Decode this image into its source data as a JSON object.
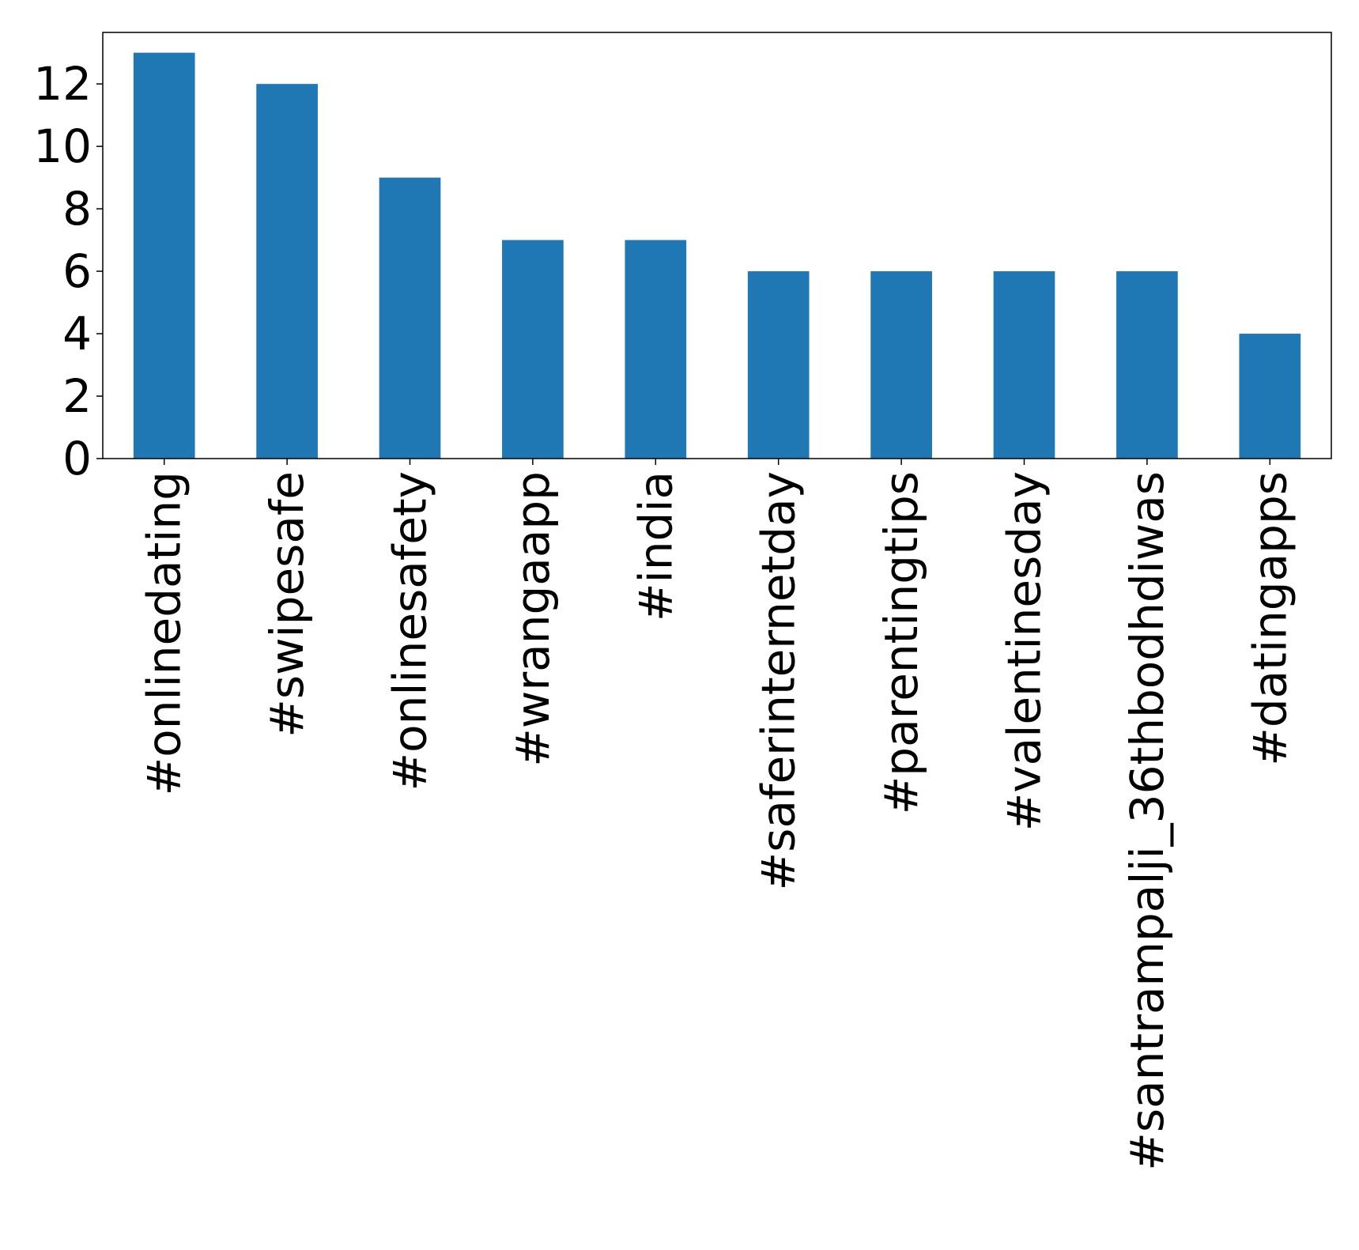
{
  "chart_data": {
    "type": "bar",
    "categories": [
      "#onlinedating",
      "#swipesafe",
      "#onlinesafety",
      "#wrangaapp",
      "#india",
      "#saferinternetday",
      "#parentingtips",
      "#valentinesday",
      "#santrampalji_36thbodhdiwas",
      "#datingapps"
    ],
    "values": [
      13,
      12,
      9,
      7,
      7,
      6,
      6,
      6,
      6,
      4
    ],
    "yticks": [
      0,
      2,
      4,
      6,
      8,
      10,
      12
    ],
    "ylim": [
      0,
      13.65
    ],
    "grid": false,
    "legend": "none",
    "bar_color": "#1f77b4",
    "axis_color": "#000000",
    "title": "",
    "xlabel": "",
    "ylabel": ""
  }
}
